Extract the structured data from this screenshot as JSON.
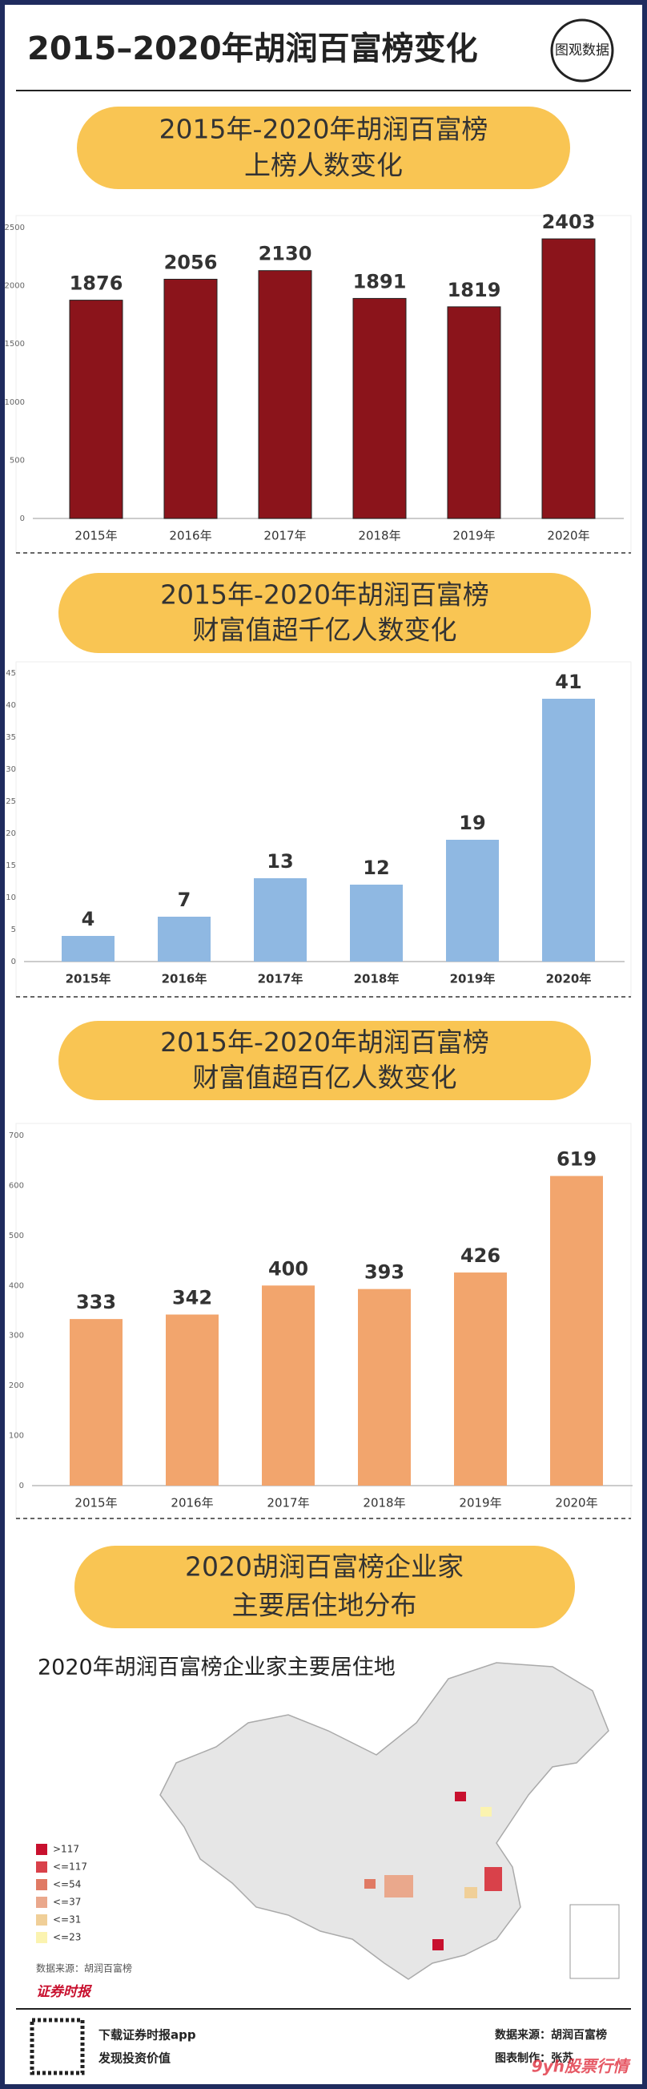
{
  "header": {
    "title": "2015–2020年胡润百富榜变化",
    "logo": "图观数据"
  },
  "chart_data": [
    {
      "type": "bar",
      "title": "2015年-2020年胡润百富榜",
      "subtitle": "上榜人数变化",
      "categories": [
        "2015年",
        "2016年",
        "2017年",
        "2018年",
        "2019年",
        "2020年"
      ],
      "values": [
        1876,
        2056,
        2130,
        1891,
        1819,
        2403
      ],
      "color": "#8b141b",
      "ylim": [
        0,
        2500
      ],
      "yticks": [
        0,
        500,
        1000,
        1500,
        2000,
        2500
      ],
      "grid": false
    },
    {
      "type": "bar",
      "title": "2015年-2020年胡润百富榜",
      "subtitle": "财富值超千亿人数变化",
      "categories": [
        "2015年",
        "2016年",
        "2017年",
        "2018年",
        "2019年",
        "2020年"
      ],
      "values": [
        4,
        7,
        13,
        12,
        19,
        41
      ],
      "color": "#8fb8e2",
      "ylim": [
        0,
        45
      ],
      "yticks": [
        0,
        5,
        10,
        15,
        20,
        25,
        30,
        35,
        40,
        45
      ],
      "grid": false
    },
    {
      "type": "bar",
      "title": "2015年-2020年胡润百富榜",
      "subtitle": "财富值超百亿人数变化",
      "categories": [
        "2015年",
        "2016年",
        "2017年",
        "2018年",
        "2019年",
        "2020年"
      ],
      "values": [
        333,
        342,
        400,
        393,
        426,
        619
      ],
      "color": "#f2a56d",
      "ylim": [
        0,
        700
      ],
      "yticks": [
        0,
        100,
        200,
        300,
        400,
        500,
        600,
        700
      ],
      "grid": false
    }
  ],
  "map": {
    "section_title": "2020胡润百富榜企业家",
    "section_subtitle": "主要居住地分布",
    "title": "2020年胡润百富榜企业家主要居住地",
    "legend": [
      {
        "label": ">117",
        "color": "#c8102e"
      },
      {
        "label": "<=117",
        "color": "#d9414a"
      },
      {
        "label": "<=54",
        "color": "#e07a64"
      },
      {
        "label": "<=37",
        "color": "#eaa88c"
      },
      {
        "label": "<=31",
        "color": "#f0cf98"
      },
      {
        "label": "<=23",
        "color": "#fbf3b0"
      }
    ],
    "source": "数据来源：胡润百富榜",
    "brand": "证券时报"
  },
  "footer": {
    "app": "下载证券时报app",
    "slogan": "发现投资价值",
    "source": "数据来源：胡润百富榜",
    "author": "图表制作：张苏",
    "watermark": "9yh股票行情"
  }
}
